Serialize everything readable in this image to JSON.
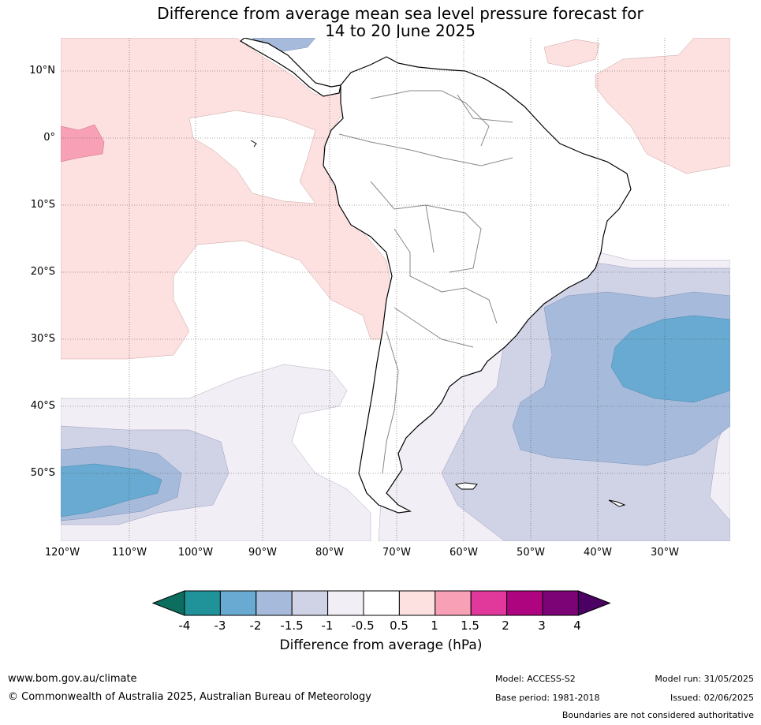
{
  "title_line1": "Difference from average mean sea level pressure forecast for",
  "title_line2": "14 to 20 June 2025",
  "lat_labels": [
    "10°N",
    "0°",
    "10°S",
    "20°S",
    "30°S",
    "40°S",
    "50°S"
  ],
  "lon_labels": [
    "120°W",
    "110°W",
    "100°W",
    "90°W",
    "80°W",
    "70°W",
    "60°W",
    "50°W",
    "40°W",
    "30°W"
  ],
  "colorbar": {
    "label": "Difference from average (hPa)",
    "ticks": [
      "-4",
      "-3",
      "-2",
      "-1.5",
      "-1",
      "-0.5",
      "0.5",
      "1",
      "1.5",
      "2",
      "3",
      "4"
    ],
    "colors": [
      "#0b6e5f",
      "#20929a",
      "#68aad1",
      "#a6bbdb",
      "#d0d2e6",
      "#f2eef5",
      "#ffffff",
      "#fde0e0",
      "#f8a0b6",
      "#e0399b",
      "#ae0480",
      "#7b0376",
      "#4b0064"
    ]
  },
  "footer": {
    "website": "www.bom.gov.au/climate",
    "copyright": "© Commonwealth of Australia 2025, Australian Bureau of Meteorology",
    "model": "Model: ACCESS-S2",
    "base_period": "Base period: 1981-2018",
    "model_run": "Model run: 31/05/2025",
    "issued": "Issued: 02/06/2025",
    "disclaimer": "Boundaries are not considered authoritative"
  }
}
